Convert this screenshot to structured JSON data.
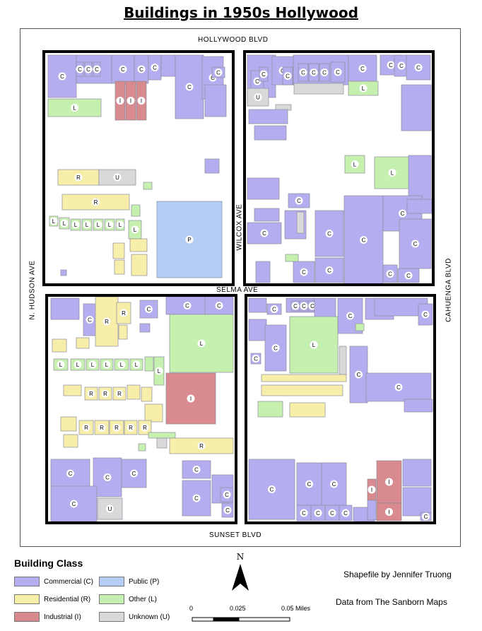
{
  "title": "Buildings in 1950s Hollywood",
  "streets": {
    "north": "HOLLYWOOD BLVD",
    "middle": "SELMA AVE",
    "south": "SUNSET BLVD",
    "west": "N. HUDSON AVE",
    "center": "WILCOX AVE",
    "east": "CAHUENGA BLVD"
  },
  "colors": {
    "commercial": "#b4aef0",
    "residential": "#f7eeaa",
    "industrial": "#d88a8e",
    "public": "#b3cdf5",
    "other": "#c6f0b0",
    "unknown": "#d9d9d9"
  },
  "legend": {
    "title": "Building Class",
    "items": [
      {
        "label": "Commercial (C)",
        "color": "#b4aef0"
      },
      {
        "label": "Residential (R)",
        "color": "#f7eeaa"
      },
      {
        "label": "Industrial (I)",
        "color": "#d88a8e"
      },
      {
        "label": "Public (P)",
        "color": "#b3cdf5"
      },
      {
        "label": "Other (L)",
        "color": "#c6f0b0"
      },
      {
        "label": "Unknown (U)",
        "color": "#d9d9d9"
      }
    ]
  },
  "north_arrow": "N",
  "scale": {
    "ticks": [
      "0",
      "0.025",
      "0.05 Miles"
    ]
  },
  "credits": {
    "author": "Shapefile by Jennifer Truong",
    "source": "Data from The Sanborn Maps"
  }
}
